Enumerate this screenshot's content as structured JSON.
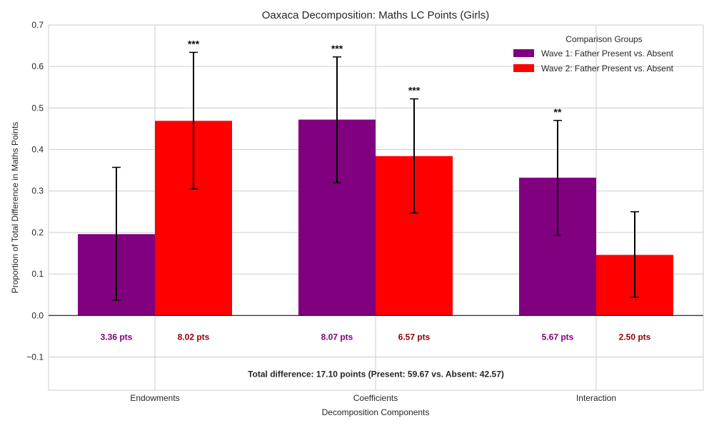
{
  "chart_data": {
    "type": "bar",
    "title": "Oaxaca Decomposition: Maths LC Points (Girls)",
    "xlabel": "Decomposition Components",
    "ylabel": "Proportion of Total Difference in Maths Points",
    "ylim": [
      -0.18,
      0.7
    ],
    "yticks": [
      -0.1,
      0.0,
      0.1,
      0.2,
      0.3,
      0.4,
      0.5,
      0.6,
      0.7
    ],
    "ytick_labels": [
      "−0.1",
      "0.0",
      "0.1",
      "0.2",
      "0.3",
      "0.4",
      "0.5",
      "0.6",
      "0.7"
    ],
    "categories": [
      "Endowments",
      "Coefficients",
      "Interaction"
    ],
    "grid": true,
    "legend": {
      "title": "Comparison Groups",
      "position": "top-right"
    },
    "series": [
      {
        "name": "Wave 1: Father Present vs. Absent",
        "color": "#800080",
        "label_color": "#800080",
        "values": [
          0.196,
          0.472,
          0.332
        ],
        "err_low": [
          0.037,
          0.32,
          0.193
        ],
        "err_high": [
          0.357,
          0.623,
          0.47
        ],
        "significance": [
          "",
          "***",
          "**"
        ],
        "point_labels": [
          "3.36 pts",
          "8.07 pts",
          "5.67 pts"
        ]
      },
      {
        "name": "Wave 2: Father Present vs. Absent",
        "color": "#ff0000",
        "label_color": "#8b0000",
        "values": [
          0.469,
          0.384,
          0.146
        ],
        "err_low": [
          0.305,
          0.247,
          0.044
        ],
        "err_high": [
          0.634,
          0.522,
          0.25
        ],
        "significance": [
          "***",
          "***",
          ""
        ],
        "point_labels": [
          "8.02 pts",
          "6.57 pts",
          "2.50 pts"
        ]
      }
    ],
    "point_label_y": -0.052,
    "annotation": {
      "text": "Total difference: 17.10 points (Present: 59.67 vs. Absent: 42.57)",
      "y": -0.141
    }
  }
}
